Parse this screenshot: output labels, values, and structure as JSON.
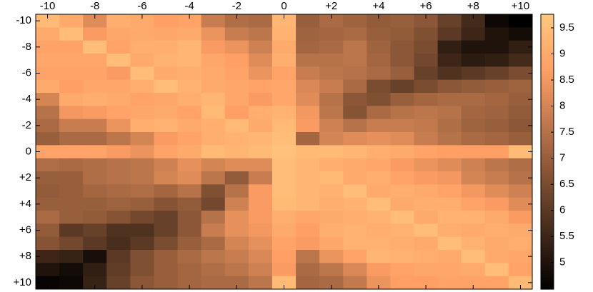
{
  "chart_data": {
    "type": "heatmap",
    "colormap": "copper",
    "clim": [
      4.49,
      9.76
    ],
    "y_reversed": true,
    "xaxis_position": "top",
    "x": [
      -10,
      -9,
      -8,
      -7,
      -6,
      -5,
      -4,
      -3,
      -2,
      -1,
      0,
      1,
      2,
      3,
      4,
      5,
      6,
      7,
      8,
      9,
      10
    ],
    "y": [
      -10,
      -9,
      -8,
      -7,
      -6,
      -5,
      -4,
      -3,
      -2,
      -1,
      0,
      1,
      2,
      3,
      4,
      5,
      6,
      7,
      8,
      9,
      10
    ],
    "xlim": [
      -10.5,
      10.5
    ],
    "ylim": [
      -10.5,
      10.5
    ],
    "xticks": [
      -10,
      -8,
      -6,
      -4,
      -2,
      0,
      {
        "value": 2,
        "label": "+2"
      },
      {
        "value": 4,
        "label": "+4"
      },
      {
        "value": 6,
        "label": "+6"
      },
      {
        "value": 8,
        "label": "+8"
      },
      {
        "value": 10,
        "label": "+10"
      }
    ],
    "yticks": [
      -10,
      -8,
      -6,
      -4,
      -2,
      0,
      {
        "value": 2,
        "label": "+2"
      },
      {
        "value": 4,
        "label": "+4"
      },
      {
        "value": 6,
        "label": "+6"
      },
      {
        "value": 8,
        "label": "+8"
      },
      {
        "value": 10,
        "label": "+10"
      }
    ],
    "cticks": [
      5,
      5.5,
      6,
      6.5,
      7,
      7.5,
      8,
      8.5,
      9,
      9.5
    ],
    "z": [
      [
        9.4,
        9.0,
        8.2,
        9.1,
        9.0,
        8.7,
        8.8,
        7.8,
        7.4,
        7.3,
        9.3,
        7.0,
        7.3,
        7.1,
        6.9,
        7.0,
        6.8,
        6.2,
        5.6,
        4.7,
        4.5
      ],
      [
        9.0,
        9.5,
        8.6,
        8.9,
        9.0,
        8.9,
        9.0,
        8.4,
        7.8,
        7.6,
        9.2,
        7.1,
        7.2,
        7.3,
        7.0,
        6.9,
        6.6,
        6.0,
        5.5,
        5.0,
        4.8
      ],
      [
        8.8,
        8.8,
        9.5,
        8.8,
        9.1,
        9.1,
        9.3,
        8.6,
        8.4,
        7.9,
        9.0,
        7.2,
        7.3,
        7.6,
        7.1,
        6.8,
        6.5,
        5.3,
        5.0,
        5.0,
        5.3
      ],
      [
        8.9,
        8.9,
        8.9,
        9.5,
        9.0,
        9.2,
        9.3,
        8.9,
        8.7,
        8.2,
        9.1,
        7.5,
        7.5,
        7.6,
        7.2,
        6.8,
        6.4,
        5.5,
        5.2,
        5.3,
        5.6
      ],
      [
        8.8,
        8.8,
        8.8,
        8.6,
        9.5,
        9.0,
        9.1,
        9.0,
        8.8,
        8.4,
        8.8,
        7.8,
        7.6,
        7.5,
        7.3,
        7.0,
        6.2,
        5.8,
        6.0,
        6.2,
        6.5
      ],
      [
        9.0,
        8.7,
        8.9,
        8.9,
        9.1,
        9.5,
        9.2,
        9.0,
        8.9,
        8.8,
        8.9,
        8.1,
        7.8,
        7.3,
        6.5,
        6.2,
        6.5,
        6.8,
        6.9,
        7.0,
        7.1
      ],
      [
        8.0,
        9.0,
        9.1,
        9.0,
        8.8,
        8.9,
        9.1,
        9.3,
        8.9,
        8.6,
        8.9,
        8.2,
        7.5,
        6.8,
        6.6,
        7.0,
        7.2,
        7.3,
        7.3,
        7.2,
        7.0
      ],
      [
        7.5,
        8.5,
        8.6,
        8.8,
        8.9,
        9.0,
        8.8,
        9.4,
        8.7,
        9.1,
        9.2,
        8.5,
        7.6,
        6.7,
        7.3,
        7.5,
        7.6,
        7.5,
        7.2,
        7.1,
        6.9
      ],
      [
        7.3,
        7.8,
        7.8,
        8.4,
        9.1,
        9.2,
        9.0,
        9.1,
        9.4,
        9.0,
        9.4,
        8.6,
        7.9,
        7.5,
        7.8,
        7.8,
        7.7,
        7.4,
        7.1,
        7.0,
        6.8
      ],
      [
        7.0,
        7.3,
        7.3,
        7.6,
        8.0,
        8.6,
        8.8,
        9.1,
        9.2,
        9.3,
        9.5,
        7.2,
        8.0,
        8.2,
        8.3,
        8.2,
        7.8,
        7.5,
        7.3,
        7.2,
        7.0
      ],
      [
        8.8,
        8.8,
        8.8,
        8.6,
        8.4,
        8.8,
        9.0,
        9.4,
        9.3,
        9.4,
        9.6,
        9.4,
        9.4,
        9.3,
        9.1,
        9.0,
        8.8,
        8.7,
        8.7,
        8.7,
        9.4
      ],
      [
        7.4,
        7.3,
        7.4,
        7.5,
        7.6,
        7.9,
        8.3,
        8.0,
        8.2,
        8.2,
        9.5,
        9.3,
        9.1,
        9.0,
        8.9,
        8.6,
        8.4,
        8.2,
        7.9,
        7.6,
        7.4
      ],
      [
        7.0,
        7.0,
        7.4,
        7.5,
        7.6,
        8.0,
        8.2,
        7.6,
        6.9,
        7.8,
        9.5,
        9.3,
        9.4,
        9.0,
        9.1,
        8.8,
        8.6,
        8.5,
        8.0,
        7.8,
        7.5
      ],
      [
        6.9,
        7.0,
        7.2,
        7.3,
        7.4,
        7.2,
        7.5,
        6.6,
        7.5,
        8.6,
        9.5,
        9.3,
        9.2,
        9.5,
        9.0,
        9.1,
        9.0,
        8.8,
        8.5,
        8.2,
        7.9
      ],
      [
        7.0,
        7.0,
        7.0,
        7.1,
        7.0,
        6.7,
        6.9,
        6.4,
        7.9,
        8.6,
        9.4,
        9.3,
        9.1,
        9.2,
        9.5,
        9.0,
        9.1,
        9.1,
        8.8,
        8.6,
        8.2
      ],
      [
        7.3,
        7.0,
        6.9,
        6.7,
        6.4,
        6.2,
        6.8,
        7.5,
        8.3,
        8.6,
        9.1,
        8.9,
        9.0,
        9.1,
        9.2,
        9.5,
        9.0,
        9.2,
        9.2,
        9.0,
        8.6
      ],
      [
        6.9,
        6.0,
        6.2,
        5.8,
        5.8,
        6.2,
        6.8,
        7.8,
        8.3,
        8.5,
        9.0,
        8.7,
        9.1,
        9.2,
        9.1,
        9.2,
        9.5,
        9.1,
        9.0,
        9.1,
        9.0
      ],
      [
        6.7,
        6.4,
        6.0,
        5.7,
        6.0,
        6.5,
        7.0,
        7.3,
        8.0,
        8.3,
        8.8,
        8.6,
        8.9,
        9.2,
        9.2,
        9.1,
        9.0,
        9.5,
        9.2,
        9.0,
        9.1
      ],
      [
        5.5,
        5.4,
        4.9,
        6.0,
        6.6,
        7.0,
        7.3,
        7.6,
        7.8,
        8.1,
        8.7,
        7.6,
        8.4,
        8.8,
        9.3,
        9.2,
        9.1,
        9.0,
        9.5,
        9.0,
        8.9
      ],
      [
        5.0,
        4.8,
        5.3,
        6.1,
        6.6,
        7.0,
        7.2,
        7.4,
        7.6,
        7.9,
        8.6,
        7.3,
        7.6,
        8.1,
        8.6,
        8.8,
        8.9,
        8.9,
        9.0,
        9.5,
        8.8
      ],
      [
        4.6,
        4.7,
        5.4,
        6.2,
        6.8,
        7.0,
        7.2,
        7.3,
        7.3,
        7.6,
        9.4,
        7.2,
        7.3,
        7.7,
        8.4,
        8.7,
        8.7,
        8.8,
        8.8,
        8.8,
        9.4
      ]
    ]
  }
}
